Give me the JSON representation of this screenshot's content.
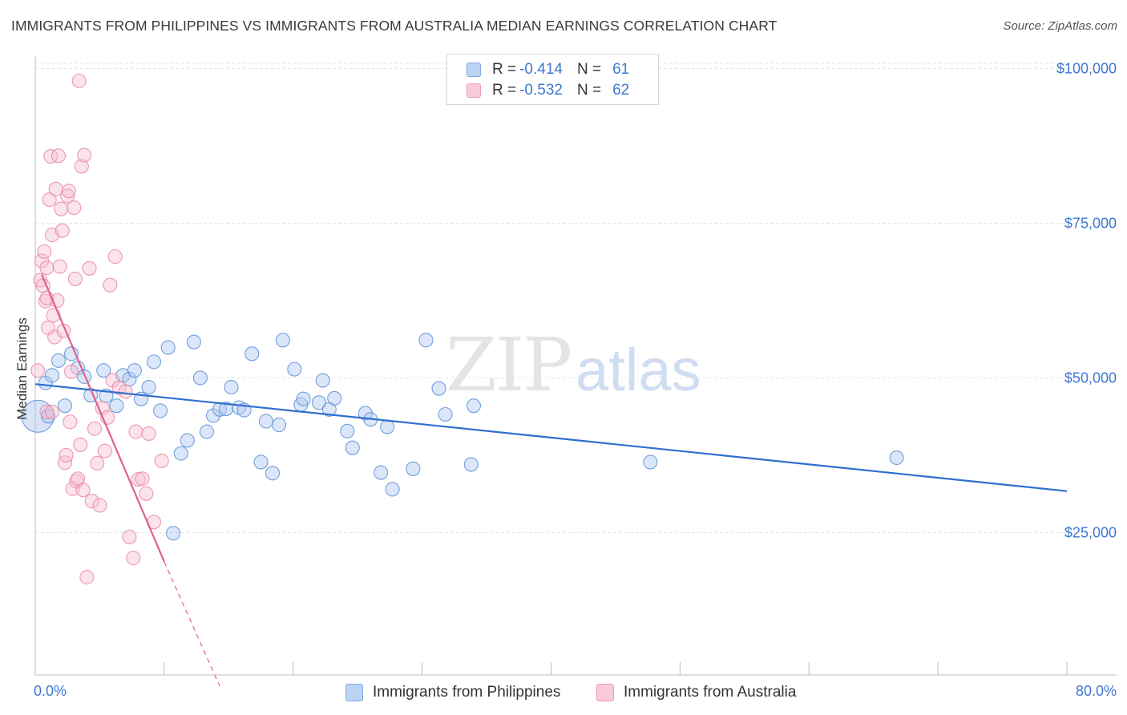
{
  "title": "IMMIGRANTS FROM PHILIPPINES VS IMMIGRANTS FROM AUSTRALIA MEDIAN EARNINGS CORRELATION CHART",
  "source": "Source: ZipAtlas.com",
  "watermark": {
    "zip": "ZIP",
    "atlas": "atlas"
  },
  "colors": {
    "blue_fill": "#aac6ee",
    "blue_stroke": "#5b8fd6",
    "blue_line": "#2f6fd0",
    "pink_fill": "#f6bcd0",
    "pink_stroke": "#e888a8",
    "pink_line": "#e0608f",
    "tick_text": "#3f78d0",
    "grid": "#e6e6e6"
  },
  "legend": {
    "rows": [
      {
        "r_label": "R =",
        "r_value": "-0.414",
        "n_label": "N =",
        "n_value": "61",
        "series": "blue"
      },
      {
        "r_label": "R =",
        "r_value": "-0.532",
        "n_label": "N =",
        "n_value": "62",
        "series": "pink"
      }
    ]
  },
  "chart_data": {
    "type": "scatter",
    "title": "IMMIGRANTS FROM PHILIPPINES VS IMMIGRANTS FROM AUSTRALIA MEDIAN EARNINGS CORRELATION CHART",
    "xlabel": "",
    "ylabel": "Median Earnings",
    "xlim": [
      0,
      80
    ],
    "ylim": [
      2000,
      102000
    ],
    "x_tick_labels": [
      "0.0%",
      "80.0%"
    ],
    "y_ticks": [
      25000,
      50000,
      75000,
      100000
    ],
    "y_tick_labels": [
      "$25,000",
      "$50,000",
      "$75,000",
      "$100,000"
    ],
    "grid": true,
    "series": [
      {
        "name": "Immigrants from Philippines",
        "color": "blue",
        "regression": {
          "x": [
            0.0,
            80.0
          ],
          "y": [
            49000,
            31700
          ]
        },
        "points": [
          [
            0.2,
            43800
          ],
          [
            0.8,
            49200
          ],
          [
            1.3,
            50400
          ],
          [
            1.8,
            52800
          ],
          [
            2.3,
            45500
          ],
          [
            2.8,
            53900
          ],
          [
            3.3,
            51600
          ],
          [
            3.8,
            50200
          ],
          [
            4.3,
            47200
          ],
          [
            5.3,
            51200
          ],
          [
            5.5,
            47100
          ],
          [
            6.3,
            45500
          ],
          [
            6.8,
            50400
          ],
          [
            7.3,
            49800
          ],
          [
            7.7,
            51200
          ],
          [
            8.2,
            46600
          ],
          [
            8.8,
            48500
          ],
          [
            9.2,
            52600
          ],
          [
            9.7,
            44700
          ],
          [
            10.3,
            54900
          ],
          [
            10.7,
            24900
          ],
          [
            11.3,
            37800
          ],
          [
            11.8,
            39900
          ],
          [
            12.3,
            55800
          ],
          [
            12.8,
            50000
          ],
          [
            13.3,
            41300
          ],
          [
            13.8,
            43900
          ],
          [
            14.3,
            44900
          ],
          [
            14.8,
            45000
          ],
          [
            15.2,
            48500
          ],
          [
            15.8,
            45200
          ],
          [
            16.2,
            44800
          ],
          [
            16.8,
            53900
          ],
          [
            17.5,
            36400
          ],
          [
            17.9,
            43000
          ],
          [
            18.4,
            34600
          ],
          [
            18.9,
            42400
          ],
          [
            19.2,
            56100
          ],
          [
            20.1,
            51400
          ],
          [
            20.6,
            45700
          ],
          [
            20.8,
            46600
          ],
          [
            22.0,
            46000
          ],
          [
            22.3,
            49600
          ],
          [
            22.8,
            44900
          ],
          [
            23.2,
            46700
          ],
          [
            24.2,
            41400
          ],
          [
            24.6,
            38700
          ],
          [
            25.6,
            44300
          ],
          [
            26.0,
            43300
          ],
          [
            26.8,
            34700
          ],
          [
            27.3,
            42100
          ],
          [
            27.7,
            32000
          ],
          [
            29.3,
            35300
          ],
          [
            30.3,
            56100
          ],
          [
            31.3,
            48300
          ],
          [
            31.8,
            44100
          ],
          [
            33.8,
            36000
          ],
          [
            34.0,
            45500
          ],
          [
            47.7,
            36400
          ],
          [
            66.8,
            37100
          ],
          [
            1.0,
            43800
          ]
        ]
      },
      {
        "name": "Immigrants from Australia",
        "color": "pink",
        "regression": {
          "x": [
            0.5,
            10.0
          ],
          "y": [
            66700,
            20300
          ]
        },
        "regression_extension": {
          "x": [
            10.0,
            14.3
          ],
          "y": [
            20300,
            200
          ]
        },
        "points": [
          [
            0.2,
            51200
          ],
          [
            0.4,
            65800
          ],
          [
            0.5,
            68900
          ],
          [
            0.6,
            64900
          ],
          [
            0.7,
            70400
          ],
          [
            0.8,
            62400
          ],
          [
            0.9,
            67800
          ],
          [
            0.9,
            44500
          ],
          [
            1.0,
            58100
          ],
          [
            1.1,
            78800
          ],
          [
            1.2,
            85800
          ],
          [
            1.3,
            73100
          ],
          [
            1.4,
            60100
          ],
          [
            1.5,
            56600
          ],
          [
            1.6,
            80500
          ],
          [
            1.7,
            62500
          ],
          [
            1.8,
            85900
          ],
          [
            1.9,
            68000
          ],
          [
            2.0,
            77300
          ],
          [
            2.1,
            73800
          ],
          [
            2.2,
            57600
          ],
          [
            2.3,
            36300
          ],
          [
            2.4,
            37500
          ],
          [
            2.5,
            79400
          ],
          [
            2.6,
            80200
          ],
          [
            2.7,
            42900
          ],
          [
            2.8,
            51000
          ],
          [
            2.9,
            32100
          ],
          [
            3.0,
            77500
          ],
          [
            3.1,
            66000
          ],
          [
            3.2,
            33300
          ],
          [
            3.3,
            33700
          ],
          [
            3.4,
            98000
          ],
          [
            3.5,
            39200
          ],
          [
            3.6,
            84200
          ],
          [
            3.7,
            31900
          ],
          [
            3.8,
            86000
          ],
          [
            4.0,
            17800
          ],
          [
            4.2,
            67700
          ],
          [
            4.4,
            30100
          ],
          [
            4.6,
            41800
          ],
          [
            4.8,
            36200
          ],
          [
            5.0,
            29400
          ],
          [
            5.2,
            45100
          ],
          [
            5.4,
            38200
          ],
          [
            5.6,
            43600
          ],
          [
            5.8,
            65000
          ],
          [
            6.0,
            49600
          ],
          [
            6.2,
            69600
          ],
          [
            6.5,
            48400
          ],
          [
            7.0,
            47800
          ],
          [
            7.3,
            24300
          ],
          [
            7.6,
            20900
          ],
          [
            7.8,
            41300
          ],
          [
            8.0,
            33600
          ],
          [
            8.3,
            33700
          ],
          [
            8.6,
            31300
          ],
          [
            8.8,
            41000
          ],
          [
            9.2,
            26700
          ],
          [
            9.8,
            36600
          ],
          [
            1.3,
            44500
          ],
          [
            0.9,
            62900
          ]
        ]
      }
    ]
  }
}
